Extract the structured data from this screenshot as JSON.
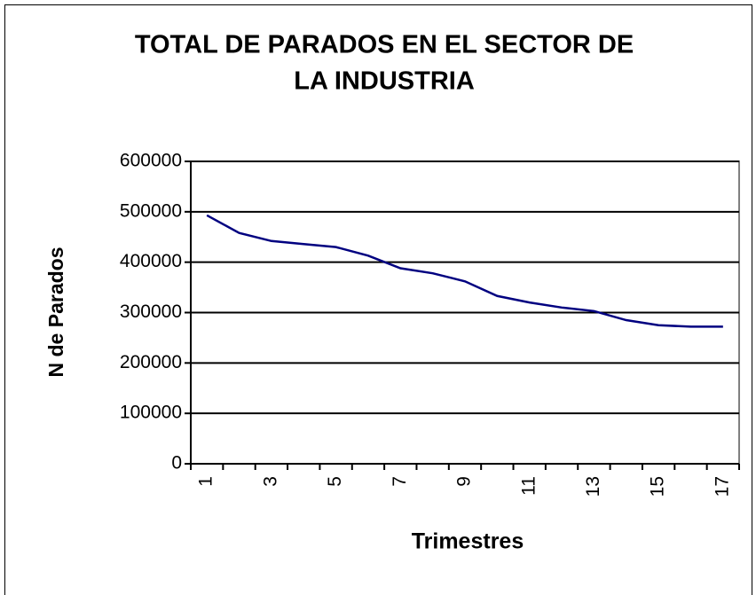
{
  "chart_data": {
    "type": "line",
    "title": [
      "TOTAL DE PARADOS EN EL SECTOR DE",
      "LA INDUSTRIA"
    ],
    "x_label": "Trimestres",
    "y_label": "N  de Parados",
    "categories": [
      "1",
      null,
      "3",
      null,
      "5",
      null,
      "7",
      null,
      "9",
      null,
      "11",
      null,
      "13",
      null,
      "15",
      null,
      "17"
    ],
    "series": [
      {
        "name": "Parados",
        "color": "#000080",
        "values": [
          493000,
          458000,
          442000,
          436000,
          430000,
          413000,
          388000,
          378000,
          362000,
          333000,
          320000,
          310000,
          303000,
          285000,
          275000,
          272000,
          272000
        ]
      }
    ],
    "ylim": [
      0,
      600000
    ],
    "yticks": [
      0,
      100000,
      200000,
      300000,
      400000,
      500000,
      600000
    ],
    "grid": true
  }
}
